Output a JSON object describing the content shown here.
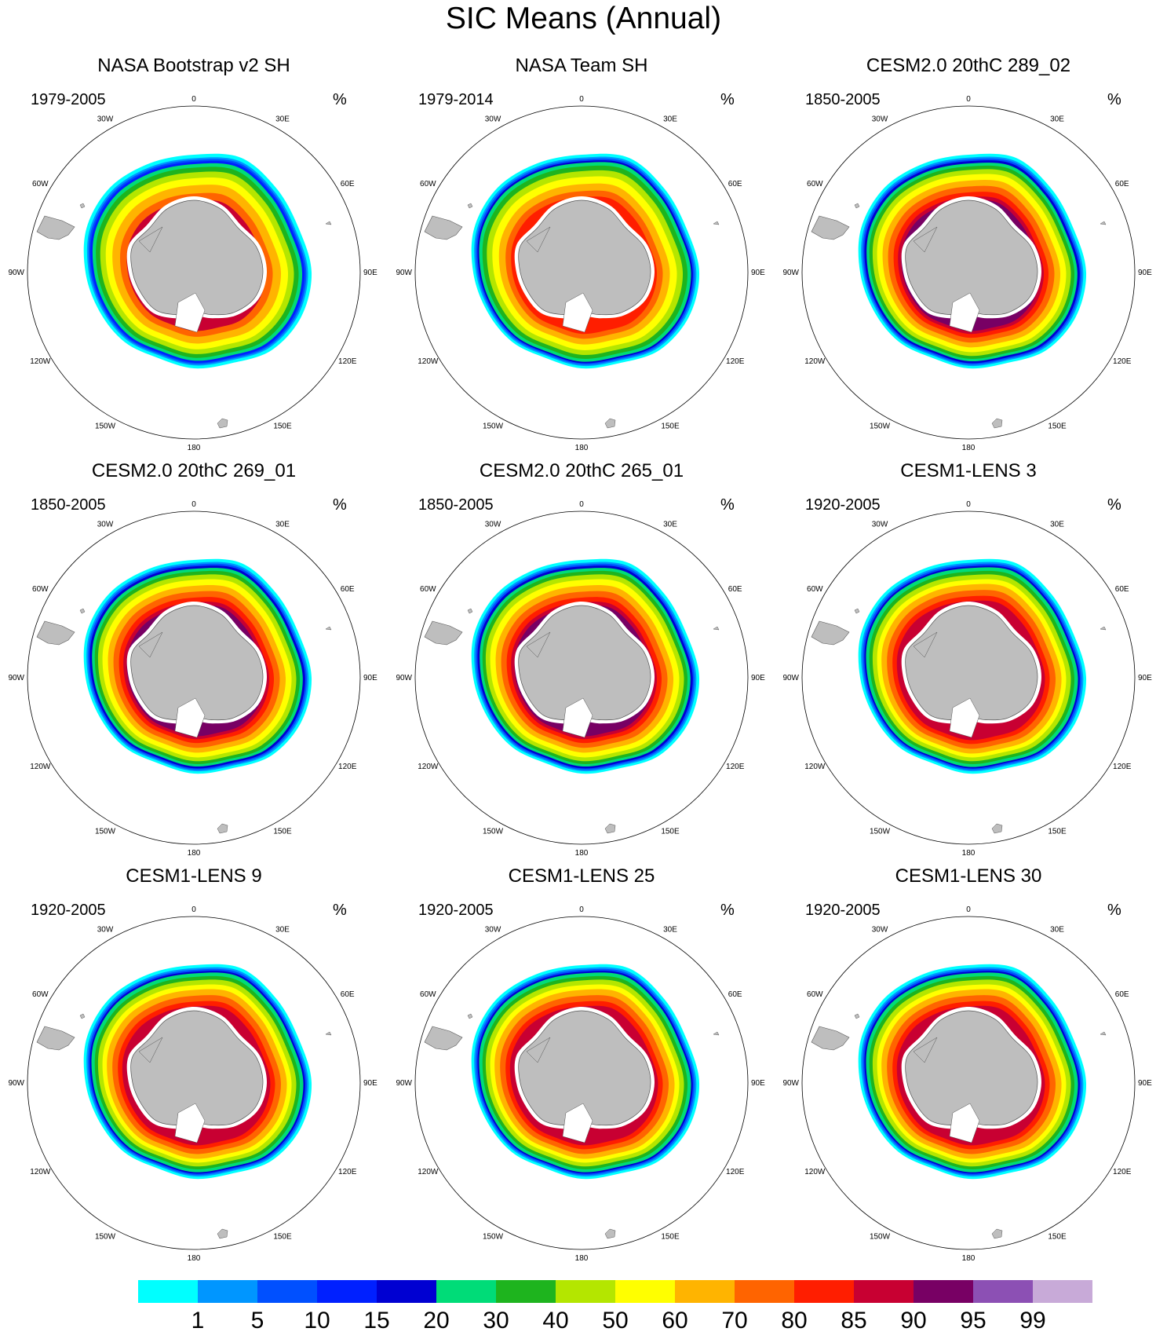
{
  "title": "SIC Means (Annual)",
  "unit_label": "%",
  "land_color": "#bebebe",
  "lon_labels": [
    "0",
    "30E",
    "60E",
    "90E",
    "120E",
    "150E",
    "180",
    "150W",
    "120W",
    "90W",
    "60W",
    "30W"
  ],
  "panels": [
    {
      "title": "NASA Bootstrap v2 SH",
      "period": "1979-2005",
      "variant": "obs_bootstrap"
    },
    {
      "title": "NASA Team SH",
      "period": "1979-2014",
      "variant": "obs_team"
    },
    {
      "title": "CESM2.0 20thC 289_02",
      "period": "1850-2005",
      "variant": "cesm2"
    },
    {
      "title": "CESM2.0 20thC 269_01",
      "period": "1850-2005",
      "variant": "cesm2"
    },
    {
      "title": "CESM2.0 20thC 265_01",
      "period": "1850-2005",
      "variant": "cesm2"
    },
    {
      "title": "CESM1-LENS 3",
      "period": "1920-2005",
      "variant": "lens"
    },
    {
      "title": "CESM1-LENS 9",
      "period": "1920-2005",
      "variant": "lens"
    },
    {
      "title": "CESM1-LENS 25",
      "period": "1920-2005",
      "variant": "lens"
    },
    {
      "title": "CESM1-LENS 30",
      "period": "1920-2005",
      "variant": "lens"
    }
  ],
  "colorbar": {
    "labels": [
      "1",
      "5",
      "10",
      "15",
      "20",
      "30",
      "40",
      "50",
      "60",
      "70",
      "80",
      "85",
      "90",
      "95",
      "99"
    ],
    "colors": [
      "#00ffff",
      "#0096ff",
      "#0050ff",
      "#0020ff",
      "#0000d2",
      "#00dc78",
      "#1eb41e",
      "#b4e600",
      "#ffff00",
      "#ffb400",
      "#ff6400",
      "#ff1e00",
      "#c80032",
      "#780064",
      "#8c50b4",
      "#c8aad8"
    ]
  }
}
